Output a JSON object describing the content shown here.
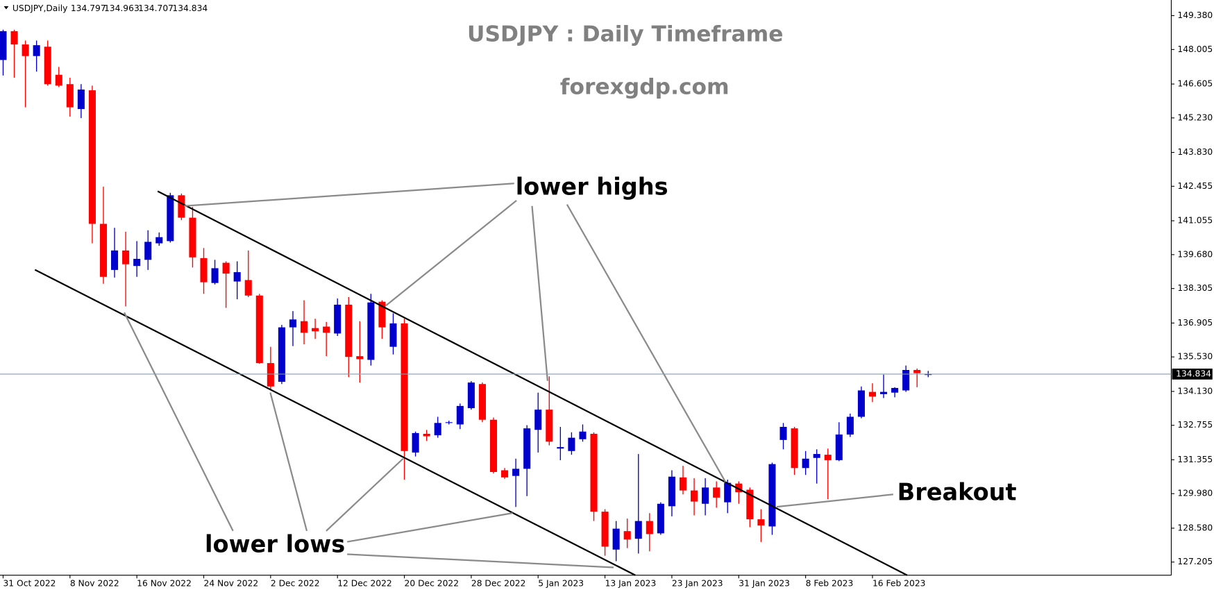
{
  "chart_data": {
    "type": "candlestick",
    "symbol": "USDJPY,Daily",
    "title": "USDJPY : Daily Timeframe",
    "subtitle": "forexgdp.com",
    "annotations": [
      "lower highs",
      "lower lows",
      "Breakout"
    ],
    "up_color": "#0000cc",
    "down_color": "#ff0000",
    "grid": false,
    "categories": [
      "31 Oct 2022",
      null,
      null,
      null,
      null,
      null,
      "8 Nov 2022",
      null,
      null,
      null,
      null,
      null,
      "16 Nov 2022",
      null,
      null,
      null,
      null,
      null,
      "24 Nov 2022",
      null,
      null,
      null,
      null,
      null,
      "2 Dec 2022",
      null,
      null,
      null,
      null,
      null,
      "12 Dec 2022",
      null,
      null,
      null,
      null,
      null,
      "20 Dec 2022",
      null,
      null,
      null,
      null,
      null,
      "28 Dec 2022",
      null,
      null,
      null,
      null,
      null,
      "5 Jan 2023",
      null,
      null,
      null,
      null,
      null,
      "13 Jan 2023",
      null,
      null,
      null,
      null,
      null,
      "23 Jan 2023",
      null,
      null,
      null,
      null,
      null,
      "31 Jan 2023",
      null,
      null,
      null,
      null,
      null,
      "8 Feb 2023",
      null,
      null,
      null,
      null,
      null,
      "16 Feb 2023",
      null,
      null,
      null,
      null,
      null
    ],
    "open": [
      147.58,
      148.75,
      148.21,
      147.74,
      148.12,
      146.98,
      146.6,
      145.59,
      146.35,
      140.93,
      139.06,
      139.85,
      139.22,
      139.47,
      140.14,
      140.23,
      142.09,
      141.18,
      139.54,
      138.53,
      139.35,
      138.59,
      138.65,
      138.02,
      135.28,
      134.52,
      136.73,
      136.98,
      136.7,
      136.76,
      136.48,
      137.65,
      135.56,
      135.41,
      137.77,
      135.94,
      136.89,
      131.65,
      132.41,
      132.35,
      132.85,
      132.79,
      133.45,
      134.43,
      132.98,
      130.93,
      130.7,
      130.99,
      132.57,
      133.39,
      131.81,
      131.71,
      132.19,
      132.41,
      129.25,
      127.71,
      128.46,
      128.15,
      128.87,
      128.37,
      129.47,
      130.64,
      130.11,
      129.57,
      130.23,
      129.63,
      130.39,
      130.14,
      128.94,
      128.65,
      132.16,
      132.63,
      131.02,
      131.43,
      131.56,
      131.34,
      132.38,
      133.1,
      134.11,
      134.02,
      134.08,
      134.17,
      135.0,
      134.797
    ],
    "high": [
      148.81,
      148.81,
      148.37,
      148.37,
      148.37,
      147.3,
      146.86,
      146.6,
      146.54,
      142.44,
      140.77,
      140.61,
      140.23,
      140.67,
      140.58,
      142.19,
      142.16,
      141.62,
      139.95,
      139.47,
      139.41,
      139.41,
      139.85,
      138.09,
      135.94,
      136.83,
      137.39,
      137.83,
      137.08,
      136.95,
      137.9,
      137.96,
      136.98,
      138.09,
      137.83,
      137.3,
      137.08,
      132.5,
      132.57,
      133.1,
      132.94,
      133.64,
      134.55,
      134.49,
      133.07,
      131.02,
      131.4,
      132.76,
      134.08,
      134.74,
      132.69,
      132.47,
      132.79,
      132.47,
      129.35,
      128.87,
      128.97,
      131.59,
      129.19,
      129.63,
      130.93,
      131.11,
      130.61,
      130.61,
      130.48,
      130.55,
      130.48,
      130.23,
      129.35,
      131.24,
      132.85,
      132.69,
      131.71,
      131.78,
      131.81,
      132.88,
      133.23,
      134.33,
      134.46,
      134.81,
      134.3,
      135.18,
      135.06,
      134.963
    ],
    "low": [
      146.95,
      146.86,
      145.66,
      147.11,
      146.54,
      146.48,
      145.28,
      145.22,
      140.14,
      138.5,
      138.75,
      137.58,
      138.78,
      139.06,
      140.04,
      140.17,
      141.08,
      139.16,
      138.09,
      138.47,
      137.52,
      137.87,
      137.96,
      135.25,
      134.21,
      134.43,
      135.97,
      136.04,
      136.26,
      135.56,
      136.38,
      134.71,
      134.49,
      135.18,
      136.26,
      135.63,
      130.55,
      131.49,
      132.12,
      132.25,
      132.79,
      132.6,
      133.39,
      132.88,
      130.8,
      130.58,
      129.44,
      129.88,
      131.65,
      131.94,
      131.34,
      131.56,
      132.09,
      128.87,
      127.46,
      127.24,
      127.77,
      127.55,
      127.64,
      128.31,
      129.06,
      129.95,
      129.1,
      129.1,
      129.41,
      129.19,
      129.57,
      128.62,
      128.02,
      128.31,
      131.78,
      130.74,
      130.74,
      130.39,
      129.76,
      131.3,
      132.28,
      133.04,
      133.7,
      133.86,
      133.89,
      134.11,
      134.3,
      134.707
    ],
    "close": [
      148.75,
      148.21,
      147.74,
      148.18,
      146.6,
      146.54,
      145.66,
      146.38,
      140.93,
      138.78,
      139.85,
      139.29,
      139.51,
      140.2,
      140.39,
      142.09,
      141.18,
      139.57,
      138.56,
      139.13,
      138.91,
      138.97,
      138.02,
      135.28,
      134.33,
      136.73,
      137.05,
      136.51,
      136.57,
      136.51,
      137.65,
      135.53,
      135.44,
      137.74,
      136.73,
      136.89,
      131.71,
      132.44,
      132.31,
      132.85,
      132.88,
      133.54,
      134.49,
      132.98,
      130.86,
      130.64,
      130.99,
      132.63,
      133.39,
      132.09,
      131.87,
      132.25,
      132.5,
      129.25,
      127.83,
      128.56,
      128.12,
      128.87,
      128.34,
      129.57,
      130.67,
      130.11,
      129.66,
      130.23,
      129.82,
      130.42,
      130.04,
      128.94,
      128.69,
      131.18,
      132.69,
      131.02,
      131.4,
      131.59,
      131.34,
      132.38,
      133.1,
      134.17,
      133.92,
      134.11,
      134.27,
      135.0,
      134.87,
      134.834
    ],
    "ylim": [
      126.67,
      149.92
    ],
    "yticks": [
      {
        "value": 149.38,
        "label": "149.380"
      },
      148.005,
      146.605,
      {
        "value": 145.23,
        "label": "145.230"
      },
      {
        "value": 143.83,
        "label": "143.830"
      },
      142.455,
      141.055,
      {
        "value": 139.68,
        "label": "139.680"
      },
      138.305,
      136.905,
      {
        "value": 135.53,
        "label": "135.530"
      },
      {
        "value": 134.13,
        "label": "134.130"
      },
      132.755,
      131.355,
      {
        "value": 129.98,
        "label": "129.980"
      },
      {
        "value": 128.58,
        "label": "128.580"
      },
      127.205
    ]
  }
}
